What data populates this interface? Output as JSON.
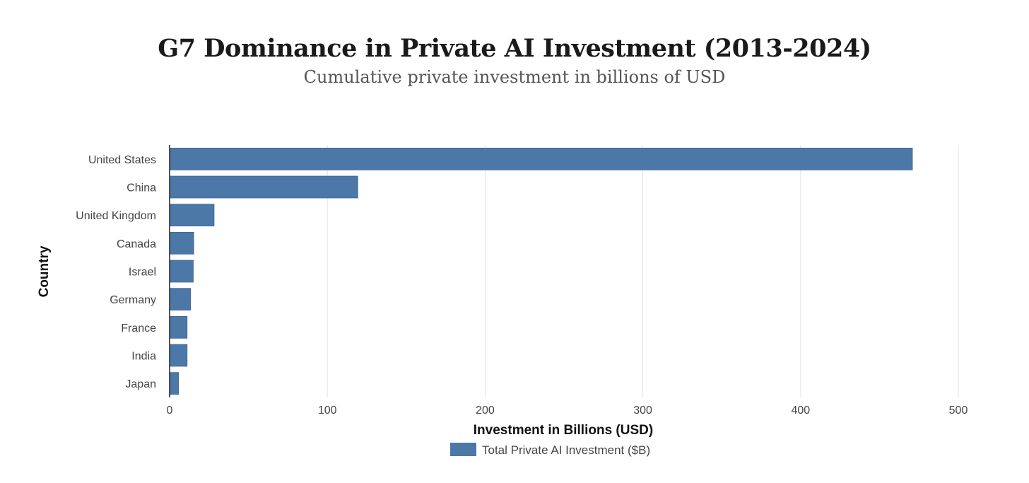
{
  "chart_data": {
    "type": "bar",
    "orientation": "horizontal",
    "title": "G7 Dominance in Private AI Investment (2013-2024)",
    "subtitle": "Cumulative private investment in billions of USD",
    "xlabel": "Investment in Billions (USD)",
    "ylabel": "Country",
    "categories": [
      "United States",
      "China",
      "United Kingdom",
      "Canada",
      "Israel",
      "Germany",
      "France",
      "India",
      "Japan"
    ],
    "series": [
      {
        "name": "Total Private AI Investment ($B)",
        "color": "#4c78a8",
        "values": [
          470.9,
          119.3,
          28.2,
          15.3,
          15.0,
          13.3,
          11.1,
          11.1,
          5.7
        ]
      }
    ],
    "xlim": [
      0,
      500
    ],
    "xticks": [
      0,
      100,
      200,
      300,
      400,
      500
    ],
    "grid": "vertical",
    "legend": "bottom-center"
  }
}
